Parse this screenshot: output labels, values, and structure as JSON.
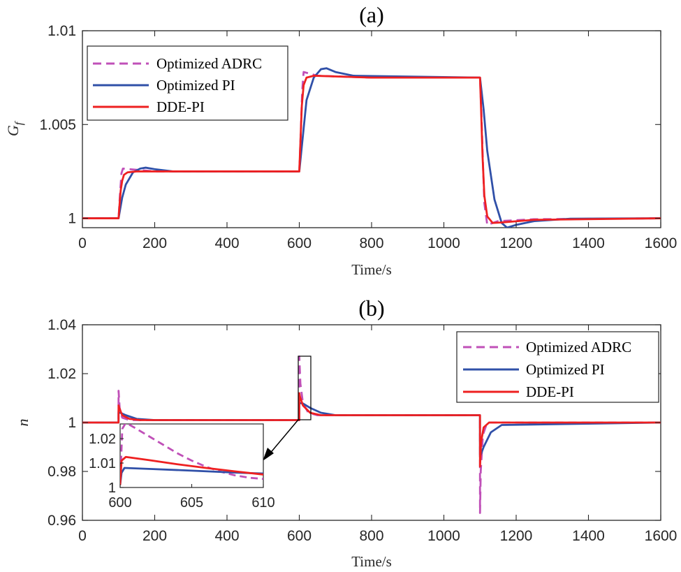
{
  "series_styles": [
    {
      "name": "Optimized ADRC",
      "color": "#c050b8",
      "dash": true
    },
    {
      "name": "Optimized PI",
      "color": "#3050a8",
      "dash": false
    },
    {
      "name": "DDE-PI",
      "color": "#ee2020",
      "dash": false
    }
  ],
  "chart_data": [
    {
      "type": "line",
      "title": "(a)",
      "xlabel": "Time/s",
      "ylabel_main": "G",
      "ylabel_sub": "f",
      "xlim": [
        0,
        1600
      ],
      "ylim": [
        0.9995,
        1.01
      ],
      "xticks": [
        0,
        200,
        400,
        600,
        800,
        1000,
        1200,
        1400,
        1600
      ],
      "xtick_labels": [
        "0",
        "200",
        "400",
        "600",
        "800",
        "1000",
        "1200",
        "1400",
        "1600"
      ],
      "yticks": [
        1,
        1.005,
        1.01
      ],
      "ytick_labels": [
        "1",
        "1.005",
        "1.01"
      ],
      "grid": false,
      "legend_position": "top-left",
      "series": [
        {
          "name": "Optimized ADRC",
          "x": [
            0,
            100,
            104,
            108,
            112,
            200,
            400,
            600,
            604,
            608,
            612,
            650,
            800,
            1100,
            1104,
            1108,
            1112,
            1120,
            1150,
            1250,
            1600
          ],
          "values": [
            1.0,
            1.0,
            1.0013,
            1.0024,
            1.00265,
            1.0025,
            1.0025,
            1.0025,
            1.0045,
            1.0068,
            1.0078,
            1.0076,
            1.0075,
            1.0075,
            1.0055,
            1.003,
            1.0008,
            0.99965,
            0.99985,
            0.99995,
            1.0
          ]
        },
        {
          "name": "Optimized PI",
          "x": [
            0,
            100,
            110,
            120,
            140,
            160,
            175,
            200,
            250,
            400,
            600,
            610,
            620,
            640,
            660,
            675,
            700,
            750,
            1100,
            1110,
            1120,
            1140,
            1160,
            1175,
            1200,
            1250,
            1350,
            1600
          ],
          "values": [
            1.0,
            1.0,
            1.0011,
            1.0018,
            1.00245,
            1.00265,
            1.0027,
            1.00262,
            1.0025,
            1.0025,
            1.0025,
            1.0044,
            1.0063,
            1.0075,
            1.00795,
            1.008,
            1.0078,
            1.0076,
            1.0075,
            1.0058,
            1.0036,
            1.001,
            0.99975,
            0.9995,
            0.99965,
            0.99985,
            0.99998,
            1.0
          ]
        },
        {
          "name": "DDE-PI",
          "x": [
            0,
            100,
            103,
            106,
            110,
            115,
            125,
            150,
            400,
            600,
            603,
            607,
            612,
            620,
            640,
            800,
            1100,
            1103,
            1107,
            1112,
            1120,
            1135,
            1160,
            1250,
            1600
          ],
          "values": [
            1.0,
            1.0,
            1.0008,
            1.0015,
            1.002,
            1.00232,
            1.00245,
            1.0025,
            1.0025,
            1.0025,
            1.004,
            1.006,
            1.0071,
            1.0075,
            1.0076,
            1.0075,
            1.0075,
            1.0058,
            1.0033,
            1.0012,
            1.0001,
            0.99975,
            0.99978,
            0.99992,
            1.0
          ]
        }
      ]
    },
    {
      "type": "line",
      "title": "(b)",
      "xlabel": "Time/s",
      "ylabel": "n",
      "xlim": [
        0,
        1600
      ],
      "ylim": [
        0.96,
        1.04
      ],
      "xticks": [
        0,
        200,
        400,
        600,
        800,
        1000,
        1200,
        1400,
        1600
      ],
      "xtick_labels": [
        "0",
        "200",
        "400",
        "600",
        "800",
        "1000",
        "1200",
        "1400",
        "1600"
      ],
      "yticks": [
        0.96,
        0.98,
        1,
        1.02,
        1.04
      ],
      "ytick_labels": [
        "0.96",
        "0.98",
        "1",
        "1.02",
        "1.04"
      ],
      "grid": false,
      "legend_position": "top-right",
      "series": [
        {
          "name": "Optimized ADRC",
          "x": [
            0,
            99.9,
            100,
            103,
            110,
            130,
            400,
            599.9,
            600,
            603,
            610,
            625,
            650,
            1000,
            1099.9,
            1100,
            1102,
            1108,
            1120,
            1600
          ],
          "values": [
            1.0,
            1.0,
            1.013,
            1.006,
            1.002,
            1.001,
            1.001,
            1.001,
            1.027,
            1.016,
            1.008,
            1.004,
            1.003,
            1.003,
            1.003,
            0.963,
            0.98,
            0.995,
            1.0,
            1.0
          ]
        },
        {
          "name": "Optimized PI",
          "x": [
            0,
            99.9,
            100,
            105,
            120,
            150,
            200,
            400,
            599.9,
            600,
            610,
            630,
            660,
            700,
            1000,
            1099.9,
            1100,
            1110,
            1130,
            1160,
            1600
          ],
          "values": [
            1.0,
            1.0,
            1.004,
            1.004,
            1.003,
            1.0015,
            1.001,
            1.001,
            1.001,
            1.008,
            1.0078,
            1.006,
            1.004,
            1.003,
            1.003,
            1.003,
            0.986,
            0.99,
            0.996,
            0.999,
            1.0
          ]
        },
        {
          "name": "DDE-PI",
          "x": [
            0,
            99.9,
            100,
            102,
            110,
            130,
            160,
            400,
            599.9,
            600,
            602,
            610,
            630,
            660,
            1000,
            1099.9,
            1100,
            1103,
            1110,
            1125,
            1600
          ],
          "values": [
            1.0,
            1.0,
            1.007,
            1.006,
            1.003,
            1.0015,
            1.001,
            1.001,
            1.001,
            1.012,
            1.0105,
            1.007,
            1.004,
            1.003,
            1.003,
            1.003,
            0.982,
            0.992,
            0.998,
            1.0,
            1.0
          ]
        }
      ]
    },
    {
      "type": "line",
      "title": "",
      "xlabel": "",
      "ylabel": "",
      "xlim": [
        600,
        610
      ],
      "ylim": [
        1.0,
        1.026
      ],
      "xticks": [
        600,
        605,
        610
      ],
      "xtick_labels": [
        "600",
        "605",
        "610"
      ],
      "yticks": [
        1,
        1.01,
        1.02
      ],
      "ytick_labels": [
        "1",
        "1.01",
        "1.02"
      ],
      "grid": false,
      "series": [
        {
          "name": "Optimized ADRC",
          "x": [
            600,
            600.15,
            600.4,
            601,
            602,
            603,
            604,
            605,
            606,
            607,
            608,
            609,
            610
          ],
          "values": [
            1.001,
            1.024,
            1.0265,
            1.0245,
            1.021,
            1.0175,
            1.014,
            1.011,
            1.0085,
            1.0065,
            1.005,
            1.004,
            1.0035
          ]
        },
        {
          "name": "Optimized PI",
          "x": [
            600,
            600.1,
            600.3,
            602,
            605,
            608,
            610
          ],
          "values": [
            1.001,
            1.006,
            1.008,
            1.0076,
            1.0069,
            1.0061,
            1.0057
          ]
        },
        {
          "name": "DDE-PI",
          "x": [
            600,
            600.1,
            600.4,
            602,
            604,
            606,
            608,
            610
          ],
          "values": [
            1.001,
            1.011,
            1.0125,
            1.0112,
            1.0095,
            1.008,
            1.0066,
            1.0053
          ]
        }
      ]
    }
  ]
}
